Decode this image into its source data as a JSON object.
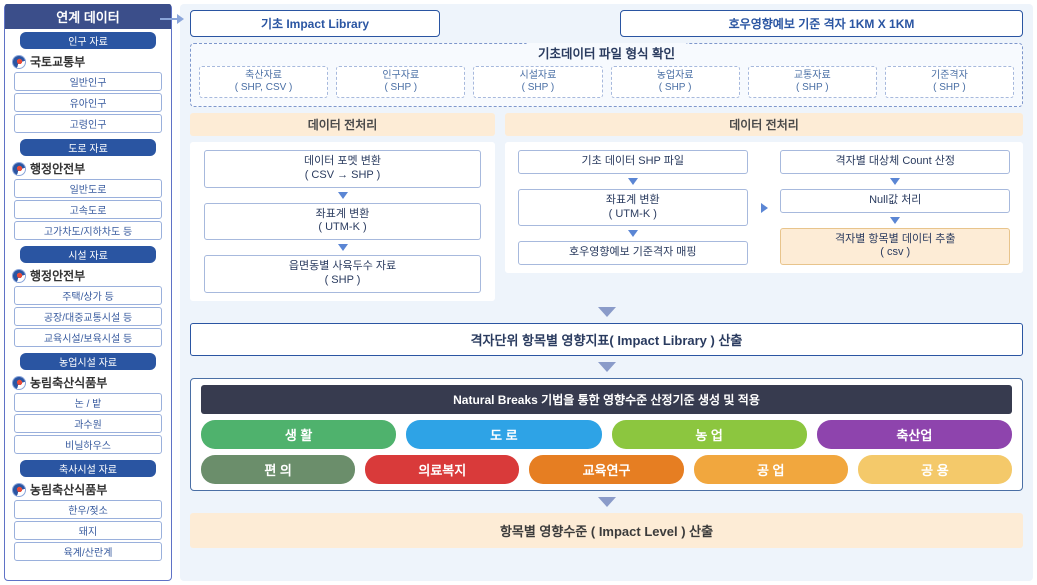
{
  "sidebar": {
    "title": "연계 데이터",
    "groups": [
      {
        "header": "인구 자료",
        "source": "국토교통부",
        "items": [
          "일반인구",
          "유아인구",
          "고령인구"
        ]
      },
      {
        "header": "도로 자료",
        "source": "행정안전부",
        "items": [
          "일반도로",
          "고속도로",
          "고가차도/지하차도 등"
        ]
      },
      {
        "header": "시설 자료",
        "source": "행정안전부",
        "items": [
          "주택/상가 등",
          "공장/대중교통시설 등",
          "교육시설/보육시설 등"
        ]
      },
      {
        "header": "농업시설 자료",
        "source": "농림축산식품부",
        "items": [
          "논 / 밭",
          "과수원",
          "비닐하우스"
        ]
      },
      {
        "header": "축사시설 자료",
        "source": "농림축산식품부",
        "items": [
          "한우/젖소",
          "돼지",
          "육계/산란계"
        ]
      }
    ]
  },
  "top": {
    "left": "기초 Impact Library",
    "right": "호우영향예보 기준 격자 1KM X 1KM"
  },
  "format": {
    "title": "기초데이터 파일 형식 확인",
    "boxes": [
      {
        "name": "축산자료",
        "type": "( SHP, CSV )"
      },
      {
        "name": "인구자료",
        "type": "( SHP )"
      },
      {
        "name": "시설자료",
        "type": "( SHP )"
      },
      {
        "name": "농업자료",
        "type": "( SHP )"
      },
      {
        "name": "교통자료",
        "type": "( SHP )"
      },
      {
        "name": "기준격자",
        "type": "( SHP )"
      }
    ]
  },
  "preprocess": {
    "title": "데이터 전처리",
    "left_steps": [
      "데이터 포멧 변환\n( CSV → SHP )",
      "좌표계 변환\n( UTM-K )",
      "읍면동별 사육두수 자료\n( SHP )"
    ],
    "right_col1": [
      "기초 데이터 SHP 파일",
      "좌표계 변환\n( UTM-K )",
      "호우영향예보  기준격자 매핑"
    ],
    "right_col2": [
      "격자별 대상체 Count 산정",
      "Null값 처리",
      "격자별 항목별 데이터 추출\n( csv )"
    ]
  },
  "impact_library_bar": "격자단위 항목별 영향지표( Impact Library ) 산출",
  "nb_bar": "Natural Breaks 기법을 통한 영향수준 산정기준 생성 및 적용",
  "chips": {
    "row1": [
      {
        "label": "생 활",
        "color": "#4fb26d"
      },
      {
        "label": "도 로",
        "color": "#2ea3e6"
      },
      {
        "label": "농 업",
        "color": "#8cc63f"
      },
      {
        "label": "축산업",
        "color": "#8e44ad"
      }
    ],
    "row2": [
      {
        "label": "편 의",
        "color": "#6b8e6b"
      },
      {
        "label": "의료복지",
        "color": "#d93a3a"
      },
      {
        "label": "교육연구",
        "color": "#e67e22"
      },
      {
        "label": "공 업",
        "color": "#f1a73e"
      },
      {
        "label": "공 용",
        "color": "#f4c96a"
      }
    ]
  },
  "final_bar": "항목별 영향수준 ( Impact Level ) 산출"
}
